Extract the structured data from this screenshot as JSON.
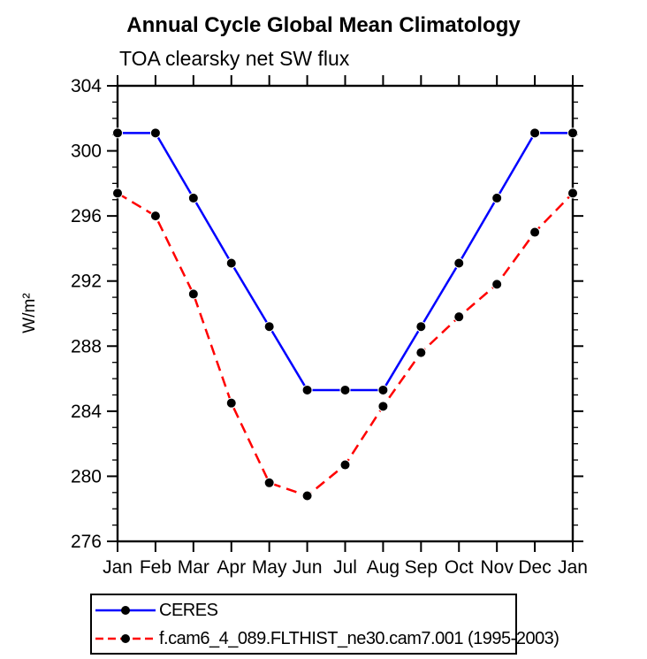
{
  "title": "Annual Cycle Global Mean Climatology",
  "subtitle": "TOA clearsky net SW flux",
  "y_axis_label": "W/m²",
  "colors": {
    "ceres_line": "#0000ff",
    "model_line": "#ff0000",
    "marker": "#000000",
    "axis": "#000000",
    "background": "#ffffff"
  },
  "legend": {
    "items": [
      {
        "label": "CERES",
        "color": "#0000ff",
        "line_style": "solid",
        "marker": "filled-circle"
      },
      {
        "label": "f.cam6_4_089.FLTHIST_ne30.cam7.001 (1995-2003)",
        "color": "#ff0000",
        "line_style": "dashed",
        "marker": "filled-circle"
      }
    ]
  },
  "chart_data": {
    "type": "line",
    "title": "Annual Cycle Global Mean Climatology",
    "subtitle": "TOA clearsky net SW flux",
    "ylabel": "W/m²",
    "x_categories": [
      "Jan",
      "Feb",
      "Mar",
      "Apr",
      "May",
      "Jun",
      "Jul",
      "Aug",
      "Sep",
      "Oct",
      "Nov",
      "Dec",
      "Jan"
    ],
    "series": [
      {
        "name": "CERES",
        "color": "#0000ff",
        "line_style": "solid",
        "marker": "filled-circle",
        "values": [
          301.1,
          301.1,
          297.1,
          293.1,
          289.2,
          285.3,
          285.3,
          285.3,
          289.2,
          293.1,
          297.1,
          301.1,
          301.1
        ]
      },
      {
        "name": "f.cam6_4_089.FLTHIST_ne30.cam7.001 (1995-2003)",
        "color": "#ff0000",
        "line_style": "dashed",
        "marker": "filled-circle",
        "values": [
          297.4,
          296.0,
          291.2,
          284.5,
          279.6,
          278.8,
          280.7,
          284.3,
          287.6,
          289.8,
          291.8,
          295.0,
          297.4
        ]
      }
    ],
    "ylim": [
      276,
      304
    ],
    "ytick_major_interval": 4,
    "ytick_minor_interval": 1,
    "ytick_labels": [
      "276",
      "280",
      "284",
      "288",
      "292",
      "296",
      "300",
      "304"
    ],
    "grid": false,
    "legend_position": "bottom-left"
  }
}
